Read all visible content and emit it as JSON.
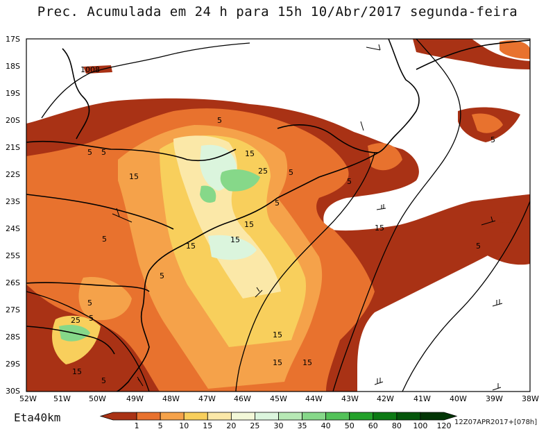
{
  "title": "Prec. Acumulada em 24 h para 15h 10/Abr/2017 segunda-feira",
  "model": "Eta40km",
  "run_info": "12Z07APR2017+[078h]",
  "lat_labels": [
    "17S",
    "18S",
    "19S",
    "20S",
    "21S",
    "22S",
    "23S",
    "24S",
    "25S",
    "26S",
    "27S",
    "28S",
    "29S",
    "30S"
  ],
  "lon_labels": [
    "52W",
    "51W",
    "50W",
    "49W",
    "48W",
    "47W",
    "46W",
    "45W",
    "44W",
    "43W",
    "42W",
    "41W",
    "40W",
    "39W",
    "38W"
  ],
  "pressure_label": "1008",
  "contour_labels": [
    "5",
    "5",
    "5",
    "15",
    "15",
    "25",
    "5",
    "5",
    "5",
    "15",
    "15",
    "5",
    "15",
    "5",
    "5",
    "5",
    "25",
    "15",
    "15",
    "15",
    "15",
    "15",
    "5",
    "5",
    "5",
    "5",
    "5",
    "5",
    "5"
  ],
  "colorbar": {
    "levels": [
      "1",
      "5",
      "10",
      "15",
      "20",
      "25",
      "30",
      "35",
      "40",
      "50",
      "60",
      "80",
      "100",
      "120"
    ],
    "colors": [
      "#a93215",
      "#e8722e",
      "#f5a24a",
      "#f8cf5c",
      "#fbe8a8",
      "#f3f8d8",
      "#dbf5dd",
      "#b7e9b5",
      "#86d889",
      "#53c259",
      "#23a12a",
      "#0c7a14",
      "#04560b",
      "#023505"
    ]
  },
  "colors": {
    "background": "#ffffff",
    "frame": "#000000",
    "dark_precip": "#a93215",
    "light_green": "#86d889"
  }
}
